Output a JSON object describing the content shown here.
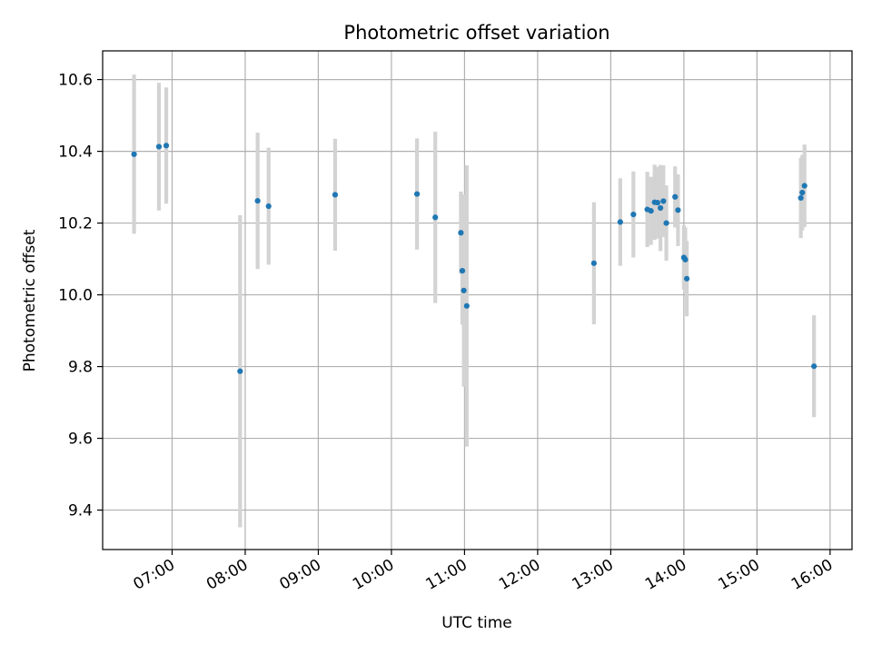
{
  "chart_data": {
    "type": "scatter",
    "title": "Photometric offset variation",
    "xlabel": "UTC time",
    "ylabel": "Photometric offset",
    "x_unit": "UTC hour of day",
    "xlim": [
      6.05,
      16.3
    ],
    "ylim": [
      9.29,
      10.68
    ],
    "x_ticks": [
      {
        "value": 7,
        "label": "07:00"
      },
      {
        "value": 8,
        "label": "08:00"
      },
      {
        "value": 9,
        "label": "09:00"
      },
      {
        "value": 10,
        "label": "10:00"
      },
      {
        "value": 11,
        "label": "11:00"
      },
      {
        "value": 12,
        "label": "12:00"
      },
      {
        "value": 13,
        "label": "13:00"
      },
      {
        "value": 14,
        "label": "14:00"
      },
      {
        "value": 15,
        "label": "15:00"
      },
      {
        "value": 16,
        "label": "16:00"
      }
    ],
    "y_ticks": [
      {
        "value": 9.4,
        "label": "9.4"
      },
      {
        "value": 9.6,
        "label": "9.6"
      },
      {
        "value": 9.8,
        "label": "9.8"
      },
      {
        "value": 10.0,
        "label": "10.0"
      },
      {
        "value": 10.2,
        "label": "10.2"
      },
      {
        "value": 10.4,
        "label": "10.4"
      },
      {
        "value": 10.6,
        "label": "10.6"
      }
    ],
    "grid": true,
    "marker_color": "#1f77b4",
    "errorbar_color": "#d3d3d3",
    "points": [
      {
        "x": 6.48,
        "y": 10.392,
        "err": 0.222
      },
      {
        "x": 6.82,
        "y": 10.413,
        "err": 0.178
      },
      {
        "x": 6.92,
        "y": 10.416,
        "err": 0.162
      },
      {
        "x": 7.93,
        "y": 9.787,
        "err": 0.435
      },
      {
        "x": 8.17,
        "y": 10.262,
        "err": 0.19
      },
      {
        "x": 8.32,
        "y": 10.247,
        "err": 0.163
      },
      {
        "x": 9.23,
        "y": 10.279,
        "err": 0.156
      },
      {
        "x": 10.35,
        "y": 10.281,
        "err": 0.155
      },
      {
        "x": 10.6,
        "y": 10.216,
        "err": 0.239
      },
      {
        "x": 10.95,
        "y": 10.173,
        "err": 0.115
      },
      {
        "x": 10.97,
        "y": 10.067,
        "err": 0.15
      },
      {
        "x": 10.99,
        "y": 10.012,
        "err": 0.268
      },
      {
        "x": 11.03,
        "y": 9.969,
        "err": 0.392
      },
      {
        "x": 12.77,
        "y": 10.088,
        "err": 0.17
      },
      {
        "x": 13.13,
        "y": 10.203,
        "err": 0.122
      },
      {
        "x": 13.31,
        "y": 10.224,
        "err": 0.12
      },
      {
        "x": 13.5,
        "y": 10.238,
        "err": 0.105
      },
      {
        "x": 13.55,
        "y": 10.234,
        "err": 0.095
      },
      {
        "x": 13.6,
        "y": 10.258,
        "err": 0.105
      },
      {
        "x": 13.64,
        "y": 10.257,
        "err": 0.1
      },
      {
        "x": 13.68,
        "y": 10.242,
        "err": 0.12
      },
      {
        "x": 13.72,
        "y": 10.261,
        "err": 0.1
      },
      {
        "x": 13.76,
        "y": 10.2,
        "err": 0.105
      },
      {
        "x": 13.88,
        "y": 10.273,
        "err": 0.085
      },
      {
        "x": 13.92,
        "y": 10.236,
        "err": 0.1
      },
      {
        "x": 14.0,
        "y": 10.104,
        "err": 0.09
      },
      {
        "x": 14.02,
        "y": 10.098,
        "err": 0.09
      },
      {
        "x": 14.04,
        "y": 10.045,
        "err": 0.105
      },
      {
        "x": 15.6,
        "y": 10.27,
        "err": 0.112
      },
      {
        "x": 15.62,
        "y": 10.285,
        "err": 0.105
      },
      {
        "x": 15.65,
        "y": 10.304,
        "err": 0.115
      },
      {
        "x": 15.78,
        "y": 9.801,
        "err": 0.142
      }
    ]
  }
}
